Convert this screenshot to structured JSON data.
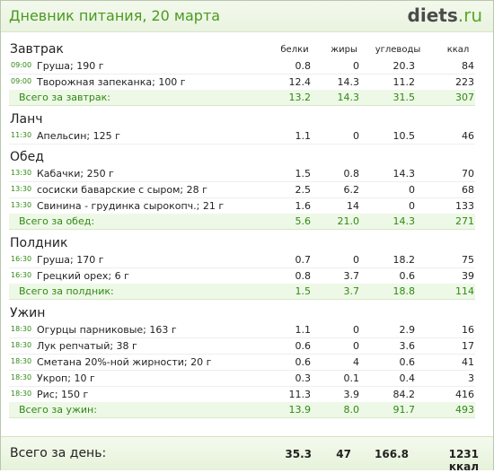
{
  "header": {
    "title": "Дневник питания, 20 марта",
    "brand_main": "diets",
    "brand_tld": ".ru"
  },
  "columns": {
    "protein": "белки",
    "fat": "жиры",
    "carbs": "углеводы",
    "kcal": "ккал"
  },
  "sections": [
    {
      "title": "Завтрак",
      "items": [
        {
          "time": "09:00",
          "name": "Груша; 190 г",
          "protein": "0.8",
          "fat": "0",
          "carbs": "20.3",
          "kcal": "84"
        },
        {
          "time": "09:00",
          "name": "Творожная запеканка; 100 г",
          "protein": "12.4",
          "fat": "14.3",
          "carbs": "11.2",
          "kcal": "223"
        }
      ],
      "total": {
        "label": "Всего за завтрак:",
        "protein": "13.2",
        "fat": "14.3",
        "carbs": "31.5",
        "kcal": "307"
      }
    },
    {
      "title": "Ланч",
      "items": [
        {
          "time": "11:30",
          "name": "Апельсин; 125 г",
          "protein": "1.1",
          "fat": "0",
          "carbs": "10.5",
          "kcal": "46"
        }
      ]
    },
    {
      "title": "Обед",
      "items": [
        {
          "time": "13:30",
          "name": "Кабачки; 250 г",
          "protein": "1.5",
          "fat": "0.8",
          "carbs": "14.3",
          "kcal": "70"
        },
        {
          "time": "13:30",
          "name": "сосиски баварские с сыром; 28 г",
          "protein": "2.5",
          "fat": "6.2",
          "carbs": "0",
          "kcal": "68"
        },
        {
          "time": "13:30",
          "name": "Свинина - грудинка сырокопч.; 21 г",
          "protein": "1.6",
          "fat": "14",
          "carbs": "0",
          "kcal": "133"
        }
      ],
      "total": {
        "label": "Всего за обед:",
        "protein": "5.6",
        "fat": "21.0",
        "carbs": "14.3",
        "kcal": "271"
      }
    },
    {
      "title": "Полдник",
      "items": [
        {
          "time": "16:30",
          "name": "Груша; 170 г",
          "protein": "0.7",
          "fat": "0",
          "carbs": "18.2",
          "kcal": "75"
        },
        {
          "time": "16:30",
          "name": "Грецкий орех; 6 г",
          "protein": "0.8",
          "fat": "3.7",
          "carbs": "0.6",
          "kcal": "39"
        }
      ],
      "total": {
        "label": "Всего за полдник:",
        "protein": "1.5",
        "fat": "3.7",
        "carbs": "18.8",
        "kcal": "114"
      }
    },
    {
      "title": "Ужин",
      "items": [
        {
          "time": "18:30",
          "name": "Огурцы парниковые; 163 г",
          "protein": "1.1",
          "fat": "0",
          "carbs": "2.9",
          "kcal": "16"
        },
        {
          "time": "18:30",
          "name": "Лук репчатый; 38 г",
          "protein": "0.6",
          "fat": "0",
          "carbs": "3.6",
          "kcal": "17"
        },
        {
          "time": "18:30",
          "name": "Сметана 20%-ной жирности; 20 г",
          "protein": "0.6",
          "fat": "4",
          "carbs": "0.6",
          "kcal": "41"
        },
        {
          "time": "18:30",
          "name": "Укроп; 10 г",
          "protein": "0.3",
          "fat": "0.1",
          "carbs": "0.4",
          "kcal": "3"
        },
        {
          "time": "18:30",
          "name": "Рис; 150 г",
          "protein": "11.3",
          "fat": "3.9",
          "carbs": "84.2",
          "kcal": "416"
        }
      ],
      "total": {
        "label": "Всего за ужин:",
        "protein": "13.9",
        "fat": "8.0",
        "carbs": "91.7",
        "kcal": "493"
      }
    }
  ],
  "day_total": {
    "label": "Всего за день:",
    "protein": "35.3",
    "fat": "47",
    "carbs": "166.8",
    "kcal": "1231 ккал"
  }
}
